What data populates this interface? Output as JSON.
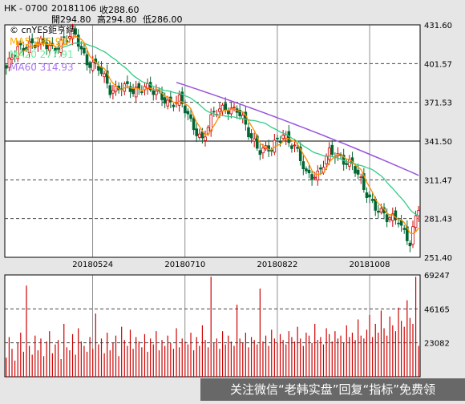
{
  "header": {
    "symbol": "HK - 0700",
    "date": "20181106",
    "close_label": "收288.60",
    "open_label": "開294.80",
    "high_label": "高294.80",
    "low_label": "低286.00"
  },
  "legend": {
    "brand": "© cnYES鉅亨網",
    "ma5": "MA5 285.90",
    "ma20": "MA20 277.91",
    "ma60": "MA60 314.93"
  },
  "watermark_text": "关注微信“老韩实盘”回复“指标”免费领",
  "colors": {
    "up": "#cc0000",
    "down": "#006633",
    "ma5": "#ff8c00",
    "ma20": "#33cc88",
    "ma60": "#9955dd",
    "ma5_legend": "#ffaa00",
    "ma20_legend": "#66ee99",
    "ma60_legend": "#aa77ee",
    "volume": "#cc0000",
    "grid": "#444444"
  },
  "chart_data": [
    {
      "type": "candlestick",
      "y_axis_ticks": [
        "431.60",
        "401.57",
        "371.53",
        "341.50",
        "311.47",
        "281.43",
        "251.40"
      ],
      "ylim": [
        251.4,
        431.6
      ],
      "x_axis_labels": [
        "20180524",
        "20180710",
        "20180822",
        "20181008"
      ],
      "x_label_index": [
        30,
        62,
        94,
        126
      ],
      "n_bars": 144,
      "close_anchors": [
        [
          0,
          398
        ],
        [
          4,
          412
        ],
        [
          8,
          418
        ],
        [
          12,
          416
        ],
        [
          16,
          414
        ],
        [
          20,
          420
        ],
        [
          24,
          423
        ],
        [
          28,
          404
        ],
        [
          32,
          397
        ],
        [
          36,
          382
        ],
        [
          40,
          384
        ],
        [
          44,
          379
        ],
        [
          48,
          386
        ],
        [
          52,
          377
        ],
        [
          56,
          372
        ],
        [
          60,
          374
        ],
        [
          64,
          355
        ],
        [
          68,
          344
        ],
        [
          72,
          362
        ],
        [
          76,
          368
        ],
        [
          80,
          366
        ],
        [
          84,
          347
        ],
        [
          88,
          336
        ],
        [
          92,
          334
        ],
        [
          96,
          348
        ],
        [
          100,
          337
        ],
        [
          104,
          315
        ],
        [
          108,
          317
        ],
        [
          112,
          331
        ],
        [
          116,
          330
        ],
        [
          120,
          323
        ],
        [
          124,
          304
        ],
        [
          128,
          292
        ],
        [
          132,
          280
        ],
        [
          136,
          282
        ],
        [
          140,
          262
        ],
        [
          143,
          289
        ]
      ],
      "ma5_end": 285.9,
      "ma20_end": 277.91,
      "ma60_end": 314.93,
      "ma60_start_index": 59,
      "ma60_start_value": 387
    },
    {
      "type": "bar",
      "y_axis_ticks": [
        "69247",
        "46165",
        "23082"
      ],
      "ylim": [
        0,
        69247
      ],
      "volume_levels": [
        13000,
        27000,
        19000,
        11000,
        23000,
        30000,
        17000,
        62000,
        21000,
        15000,
        28000,
        18000,
        26000,
        14000,
        24000,
        31000,
        16000,
        22000,
        25000,
        12000,
        36000,
        20000,
        18000,
        29000,
        15000,
        33000,
        24000,
        21000,
        17000,
        27000,
        19000,
        43000,
        22000,
        26000,
        16000,
        30000,
        18000,
        23000,
        28000,
        14000,
        34000,
        25000,
        21000,
        32000,
        19000,
        27000,
        24000,
        20000,
        29000,
        17000,
        26000,
        22000,
        31000,
        18000,
        25000,
        21000,
        28000,
        23000,
        19000,
        33000,
        20000,
        26000,
        24000,
        22000,
        30000,
        18000,
        27000,
        21000,
        35000,
        25000,
        20000,
        68000,
        23000,
        26000,
        19000,
        31000,
        22000,
        28000,
        24000,
        21000,
        49000,
        26000,
        23000,
        30000,
        20000,
        27000,
        25000,
        22000,
        60000,
        24000,
        28000,
        21000,
        32000,
        26000,
        23000,
        29000,
        25000,
        22000,
        31000,
        27000,
        24000,
        34000,
        26000,
        21000,
        30000,
        28000,
        23000,
        36000,
        25000,
        27000,
        22000,
        33000,
        29000,
        24000,
        31000,
        26000,
        28000,
        23000,
        35000,
        27000,
        30000,
        25000,
        39000,
        28000,
        26000,
        32000,
        42000,
        27000,
        36000,
        30000,
        45000,
        33000,
        28000,
        41000,
        35000,
        31000,
        47000,
        38000,
        34000,
        52000,
        40000,
        36000,
        68000,
        21000
      ]
    }
  ]
}
